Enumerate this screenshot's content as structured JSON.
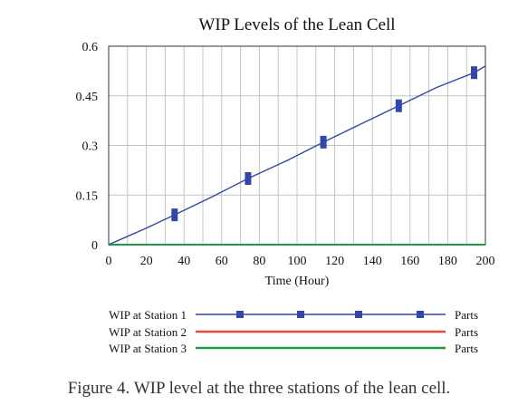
{
  "chart_data": {
    "type": "line",
    "title": "WIP Levels of the Lean Cell",
    "xlabel": "Time (Hour)",
    "ylabel": "",
    "xlim": [
      0,
      200
    ],
    "ylim": [
      0,
      0.6
    ],
    "x_ticks": [
      0,
      20,
      40,
      60,
      80,
      100,
      120,
      140,
      160,
      180,
      200
    ],
    "y_ticks": [
      0,
      0.15,
      0.3,
      0.45,
      0.6
    ],
    "x_tick_labels": [
      "0",
      "20",
      "40",
      "60",
      "80",
      "100",
      "120",
      "140",
      "160",
      "180",
      "200"
    ],
    "y_tick_labels": [
      "0",
      "0.15",
      "0.3",
      "0.45",
      "0.6"
    ],
    "grid": true,
    "legend_position": "bottom",
    "series": [
      {
        "name": "WIP at Station 1",
        "unit": "Parts",
        "color": "#3347a8",
        "marker": "square",
        "x": [
          0,
          20,
          35,
          55,
          74,
          95,
          114,
          134,
          154,
          174,
          194,
          200
        ],
        "y": [
          0,
          0.05,
          0.09,
          0.145,
          0.2,
          0.255,
          0.31,
          0.365,
          0.42,
          0.475,
          0.52,
          0.54
        ]
      },
      {
        "name": "WIP at Station 2",
        "unit": "Parts",
        "color": "#e8473a",
        "x": [
          0,
          200
        ],
        "y": [
          0,
          0
        ]
      },
      {
        "name": "WIP at Station 3",
        "unit": "Parts",
        "color": "#1f9a45",
        "x": [
          0,
          200
        ],
        "y": [
          0,
          0
        ]
      }
    ]
  },
  "figure_caption": "Figure 4.  WIP level at the three stations of the lean cell."
}
